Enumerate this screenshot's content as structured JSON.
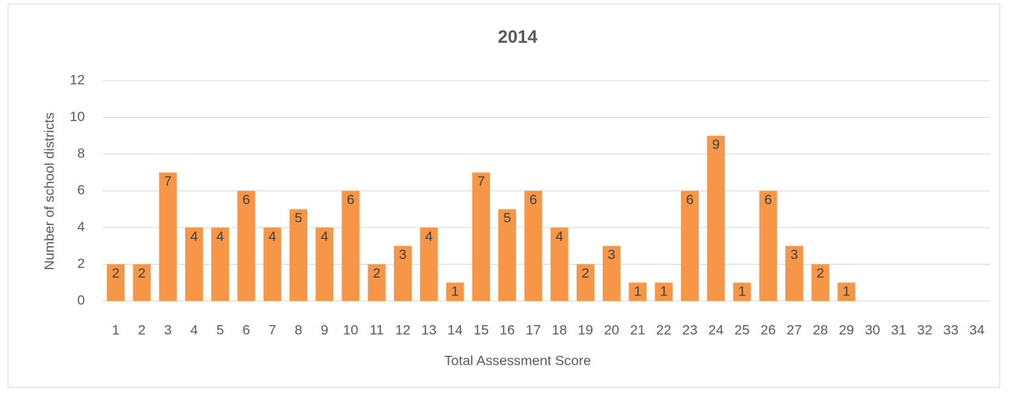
{
  "chart_data": {
    "type": "bar",
    "title": "2014",
    "x_label": "Total Assessment Score",
    "y_label": "Number of school districts",
    "categories": [
      "1",
      "2",
      "3",
      "4",
      "5",
      "6",
      "7",
      "8",
      "9",
      "10",
      "11",
      "12",
      "13",
      "14",
      "15",
      "16",
      "17",
      "18",
      "19",
      "20",
      "21",
      "22",
      "23",
      "24",
      "25",
      "26",
      "27",
      "28",
      "29",
      "30",
      "31",
      "32",
      "33",
      "34"
    ],
    "values": [
      2,
      2,
      7,
      4,
      4,
      6,
      4,
      5,
      4,
      6,
      2,
      3,
      4,
      1,
      7,
      5,
      6,
      4,
      2,
      3,
      1,
      1,
      6,
      9,
      1,
      6,
      3,
      2,
      1,
      null,
      null,
      null,
      null,
      null
    ],
    "color": "#f79646",
    "data_labels": true,
    "ylim": [
      0,
      12
    ],
    "yticks": [
      0,
      2,
      4,
      6,
      8,
      10,
      12
    ],
    "grid": true
  }
}
